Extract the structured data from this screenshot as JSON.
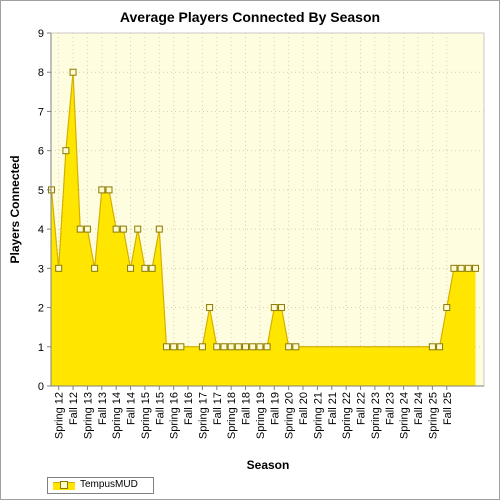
{
  "chart_data": {
    "type": "area",
    "title": "Average Players Connected By Season",
    "xlabel": "Season",
    "ylabel": "Players Connected",
    "ylim": [
      0,
      9
    ],
    "yticks": [
      0,
      1,
      2,
      3,
      4,
      5,
      6,
      7,
      8,
      9
    ],
    "grid": true,
    "legend_position": "bottom-left",
    "colors": {
      "fill": "#ffe600",
      "line": "#d4b000",
      "plot_background": "#fffde0",
      "marker_fill": "#fffbd0",
      "marker_edge": "#8a7a00"
    },
    "x_tick_labels": [
      "Spring 12",
      "Fall 12",
      "Spring 13",
      "Fall 13",
      "Spring 14",
      "Fall 14",
      "Spring 15",
      "Fall 15",
      "Spring 16",
      "Fall 16",
      "Spring 17",
      "Fall 17",
      "Spring 18",
      "Fall 18",
      "Spring 19",
      "Fall 19",
      "Spring 20",
      "Fall 20",
      "Spring 21",
      "Fall 21",
      "Spring 22",
      "Fall 22",
      "Spring 23",
      "Fall 23",
      "Spring 24",
      "Fall 24",
      "Spring 25",
      "Fall 25"
    ],
    "series": [
      {
        "name": "TempusMUD",
        "values": [
          5,
          3,
          6,
          8,
          4,
          4,
          3,
          5,
          5,
          4,
          4,
          3,
          4,
          3,
          3,
          4,
          1,
          1,
          1,
          1,
          1,
          1,
          2,
          1,
          1,
          1,
          1,
          1,
          1,
          1,
          1,
          2,
          2,
          1,
          1,
          1,
          1,
          1,
          1,
          1,
          1,
          1,
          1,
          1,
          1,
          1,
          1,
          1,
          1,
          1,
          1,
          1,
          1,
          1,
          1,
          2,
          3,
          3,
          3,
          3
        ],
        "markers": [
          true,
          true,
          true,
          true,
          true,
          true,
          true,
          true,
          true,
          true,
          true,
          true,
          true,
          true,
          true,
          true,
          true,
          true,
          true,
          false,
          false,
          true,
          true,
          true,
          true,
          true,
          true,
          true,
          true,
          true,
          true,
          true,
          true,
          true,
          true,
          false,
          false,
          false,
          false,
          false,
          false,
          false,
          false,
          false,
          false,
          false,
          false,
          false,
          false,
          false,
          false,
          false,
          false,
          true,
          true,
          true,
          true,
          true,
          true,
          true
        ]
      }
    ]
  }
}
